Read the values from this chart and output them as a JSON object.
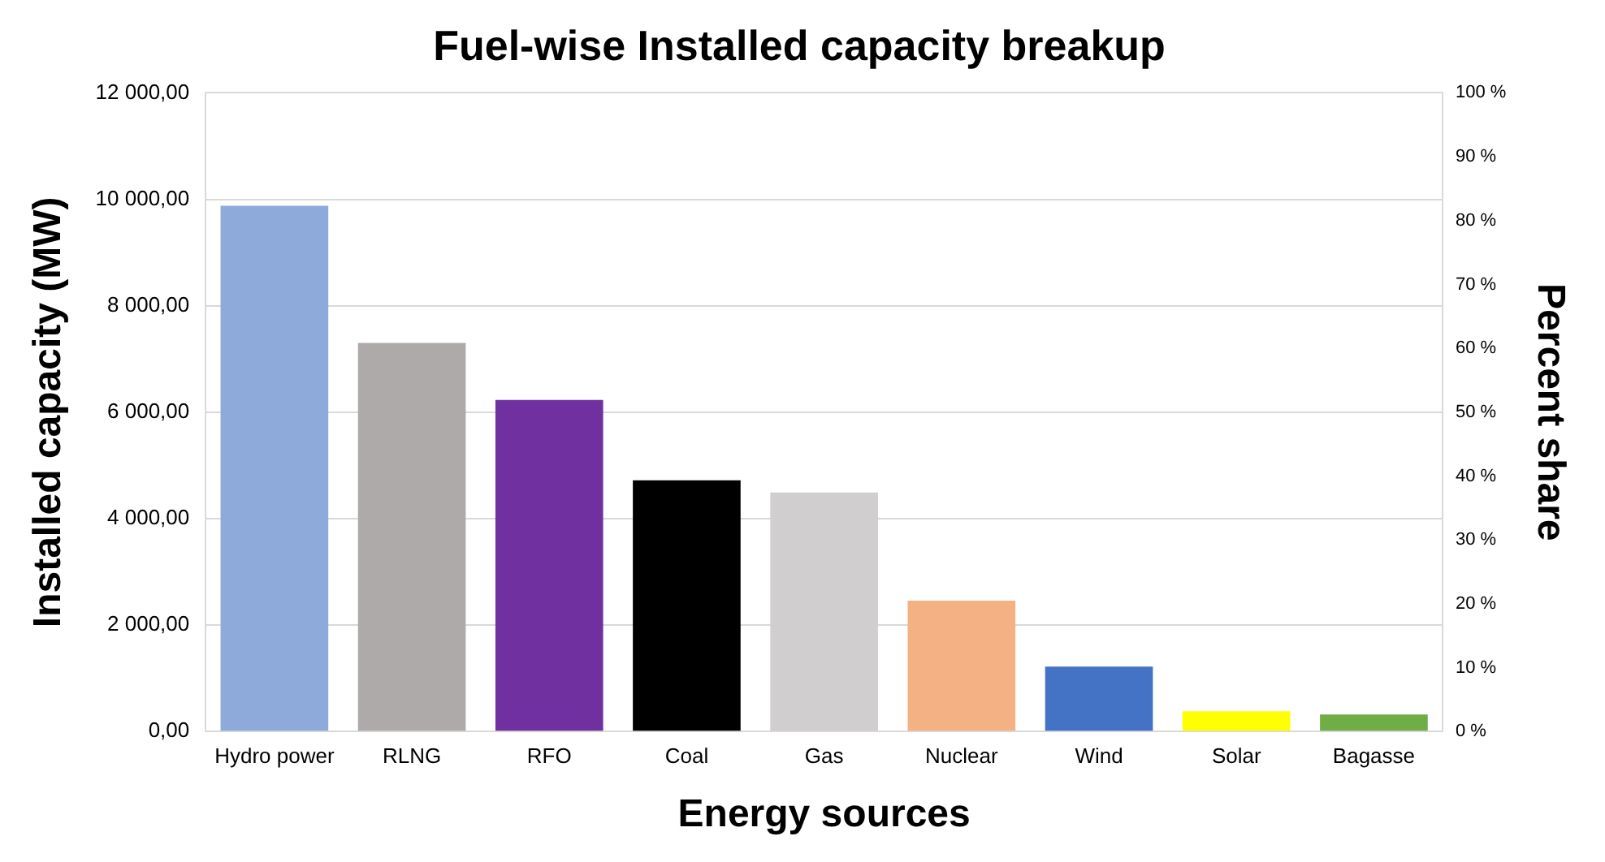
{
  "chart_data": {
    "type": "bar",
    "title": "Fuel-wise Installed capacity breakup",
    "xlabel": "Energy sources",
    "ylabel": "Installed capacity (MW)",
    "y2label": "Percent share",
    "categories": [
      "Hydro power",
      "RLNG",
      "RFO",
      "Coal",
      "Gas",
      "Nuclear",
      "Wind",
      "Solar",
      "Bagasse"
    ],
    "values": [
      9880,
      7300,
      6230,
      4720,
      4490,
      2460,
      1220,
      380,
      320
    ],
    "colors": [
      "#8eaadb",
      "#aeaaaa",
      "#7030a0",
      "#000000",
      "#d0cece",
      "#f4b183",
      "#4472c4",
      "#ffff00",
      "#70ad47"
    ],
    "ylim": [
      0,
      12000
    ],
    "yticks": [
      {
        "value": 0,
        "label": "0,00"
      },
      {
        "value": 2000,
        "label": "2 000,00"
      },
      {
        "value": 4000,
        "label": "4 000,00"
      },
      {
        "value": 6000,
        "label": "6 000,00"
      },
      {
        "value": 8000,
        "label": "8 000,00"
      },
      {
        "value": 10000,
        "label": "10 000,00"
      },
      {
        "value": 12000,
        "label": "12 000,00"
      }
    ],
    "y2lim": [
      0,
      100
    ],
    "y2ticks": [
      {
        "value": 0,
        "label": "0 %"
      },
      {
        "value": 10,
        "label": "10 %"
      },
      {
        "value": 20,
        "label": "20 %"
      },
      {
        "value": 30,
        "label": "30 %"
      },
      {
        "value": 40,
        "label": "40 %"
      },
      {
        "value": 50,
        "label": "50 %"
      },
      {
        "value": 60,
        "label": "60 %"
      },
      {
        "value": 70,
        "label": "70 %"
      },
      {
        "value": 80,
        "label": "80 %"
      },
      {
        "value": 90,
        "label": "90 %"
      },
      {
        "value": 100,
        "label": "100 %"
      }
    ],
    "grid": "y",
    "legend": false
  }
}
